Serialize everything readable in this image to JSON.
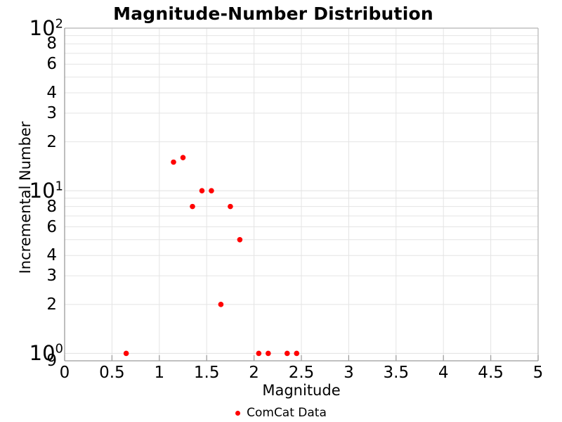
{
  "chart_data": {
    "type": "scatter",
    "title": "Magnitude-Number Distribution",
    "xlabel": "Magnitude",
    "ylabel": "Incremental Number",
    "x_scale": "linear",
    "y_scale": "log",
    "xlim": [
      0,
      5
    ],
    "ylim": [
      0.9,
      100
    ],
    "grid": true,
    "legend_position": "bottom-center",
    "x_ticks": [
      0,
      0.5,
      1,
      1.5,
      2,
      2.5,
      3,
      3.5,
      4,
      4.5,
      5
    ],
    "x_tick_labels": [
      "0",
      "0.5",
      "1",
      "1.5",
      "2",
      "2.5",
      "3",
      "3.5",
      "4",
      "4.5",
      "5"
    ],
    "y_ticks": [
      {
        "v": 100,
        "label": "10",
        "exp": "2"
      },
      {
        "v": 80,
        "label": "8"
      },
      {
        "v": 60,
        "label": "6"
      },
      {
        "v": 40,
        "label": "4"
      },
      {
        "v": 30,
        "label": "3"
      },
      {
        "v": 20,
        "label": "2"
      },
      {
        "v": 10,
        "label": "10",
        "exp": "1"
      },
      {
        "v": 8,
        "label": "8"
      },
      {
        "v": 6,
        "label": "6"
      },
      {
        "v": 4,
        "label": "4"
      },
      {
        "v": 3,
        "label": "3"
      },
      {
        "v": 2,
        "label": "2"
      },
      {
        "v": 1,
        "label": "10",
        "exp": "0"
      },
      {
        "v": 0.9,
        "label": "9"
      }
    ],
    "y_grid_major": [
      100,
      10,
      1
    ],
    "y_grid_minor": [
      90,
      80,
      70,
      60,
      50,
      40,
      30,
      20,
      9,
      8,
      7,
      6,
      5,
      4,
      3,
      2
    ],
    "series": [
      {
        "name": "ComCat Data",
        "marker": "circle",
        "color": "#ff0000",
        "x": [
          0.65,
          1.15,
          1.25,
          1.35,
          1.45,
          1.55,
          1.65,
          1.75,
          1.85,
          2.05,
          2.15,
          2.35,
          2.45
        ],
        "y": [
          1,
          15,
          16,
          8,
          10,
          10,
          2,
          8,
          5,
          1,
          1,
          1,
          1
        ]
      }
    ]
  },
  "legend": {
    "label": "ComCat Data"
  },
  "colors": {
    "marker": "#ff0000",
    "grid": "#e4e4e4",
    "spine_dark": "#9a9a9a",
    "spine_light": "#b9b9b9",
    "text": "#000000",
    "background": "#ffffff"
  }
}
